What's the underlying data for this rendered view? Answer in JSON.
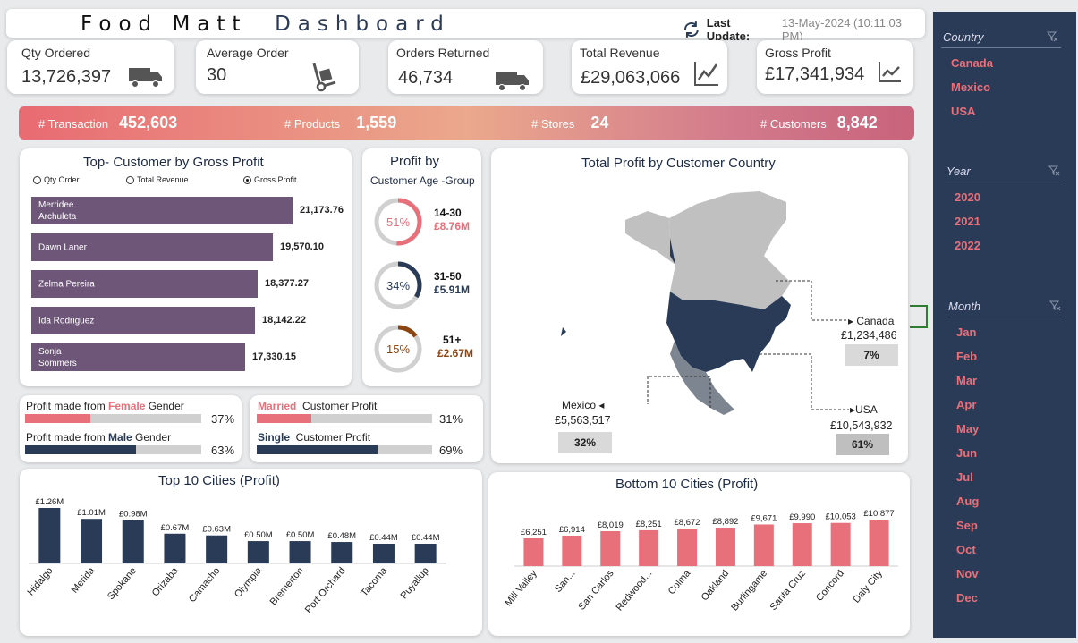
{
  "header": {
    "title_part1": "Food Matt",
    "title_part2": "Dashboard",
    "last_update_label": "Last Update:",
    "last_update_value": "13-May-2024 (10:11:03 PM)"
  },
  "kpis": [
    {
      "label": "Qty Ordered",
      "value": "13,726,397",
      "icon": "truck-icon"
    },
    {
      "label": "Average Order",
      "value": "30",
      "icon": "hand-truck-icon"
    },
    {
      "label": "Orders Returned",
      "value": "46,734",
      "icon": "truck-icon"
    },
    {
      "label": "Total Revenue",
      "value": "£29,063,066",
      "icon": "line-chart-icon"
    },
    {
      "label": "Gross Profit",
      "value": "£17,341,934",
      "icon": "line-chart-icon"
    }
  ],
  "banner": [
    {
      "label": "# Transaction",
      "value": "452,603"
    },
    {
      "label": "# Products",
      "value": "1,559"
    },
    {
      "label": "# Stores",
      "value": "24"
    },
    {
      "label": "# Customers",
      "value": "8,842"
    }
  ],
  "top_customers": {
    "title": "Top- Customer by  Gross Profit",
    "options": [
      "Qty Order",
      "Total Revenue",
      "Gross Profit"
    ],
    "selected_option": "Gross Profit",
    "bars": [
      {
        "name": "Merridee Archuleta",
        "value": "21,173.76",
        "num": 21173.76
      },
      {
        "name": "Dawn Laner",
        "value": "19,570.10",
        "num": 19570.1
      },
      {
        "name": "Zelma Pereira",
        "value": "18,377.27",
        "num": 18377.27
      },
      {
        "name": "Ida Rodriguez",
        "value": "18,142.22",
        "num": 18142.22
      },
      {
        "name": "Sonja Sommers",
        "value": "17,330.15",
        "num": 17330.15
      }
    ]
  },
  "age_group": {
    "title": "Profit by",
    "subtitle": "Customer Age -Group",
    "items": [
      {
        "pct": "51%",
        "fraction": 0.51,
        "group": "14-30",
        "amount": "£8.76M",
        "color": "#e8707a"
      },
      {
        "pct": "34%",
        "fraction": 0.34,
        "group": "31-50",
        "amount": "£5.91M",
        "color": "#293b57"
      },
      {
        "pct": "15%",
        "fraction": 0.15,
        "group": "51+",
        "amount": "£2.67M",
        "color": "#8b4513"
      }
    ]
  },
  "gender": {
    "female_pre": "Profit made from ",
    "female_word": "Female",
    "female_post": " Gender",
    "female_pct": "37%",
    "female_fraction": 0.37,
    "male_pre": "Profit made from ",
    "male_word": "Male",
    "male_post": " Gender",
    "male_pct": "63%",
    "male_fraction": 0.63
  },
  "marital": {
    "married_word": "Married",
    "married_post": "  Customer Profit",
    "married_pct": "31%",
    "married_fraction": 0.31,
    "single_word": "Single",
    "single_post": "  Customer Profit",
    "single_pct": "69%",
    "single_fraction": 0.69
  },
  "map": {
    "title": "Total Profit by Customer Country",
    "countries": [
      {
        "name": "Canada",
        "value": "£1,234,486",
        "pct": "7%"
      },
      {
        "name": "Mexico",
        "value": "£5,563,517",
        "pct": "32%"
      },
      {
        "name": "USA",
        "value": "£10,543,932",
        "pct": "61%"
      }
    ]
  },
  "chart_data": [
    {
      "type": "bar",
      "title": "Top 10  Cities (Profit)",
      "categories": [
        "Hidalgo",
        "Merida",
        "Spokane",
        "Orizaba",
        "Camacho",
        "Olympia",
        "Bremerton",
        "Port Orchard",
        "Tacoma",
        "Puyallup"
      ],
      "values": [
        1.26,
        1.01,
        0.98,
        0.67,
        0.63,
        0.5,
        0.5,
        0.48,
        0.44,
        0.44
      ],
      "labels": [
        "£1.26M",
        "£1.01M",
        "£0.98M",
        "£0.67M",
        "£0.63M",
        "£0.50M",
        "£0.50M",
        "£0.48M",
        "£0.44M",
        "£0.44M"
      ],
      "color": "#293b57"
    },
    {
      "type": "bar",
      "title": "Bottom 10 Cities (Profit)",
      "categories": [
        "Mill Valley",
        "San...",
        "San Carlos",
        "Redwood...",
        "Colma",
        "Oakland",
        "Burlingame",
        "Santa Cruz",
        "Concord",
        "Daly City"
      ],
      "values": [
        6251,
        6914,
        8019,
        8251,
        8672,
        8892,
        9671,
        9990,
        10053,
        10877
      ],
      "labels": [
        "£6,251",
        "£6,914",
        "£8,019",
        "£8,251",
        "£8,672",
        "£8,892",
        "£9,671",
        "£9,990",
        "£10,053",
        "£10,877"
      ],
      "color": "#e8707a"
    }
  ],
  "slicers": {
    "country": {
      "label": "Country",
      "items": [
        "Canada",
        "Mexico",
        "USA"
      ]
    },
    "year": {
      "label": "Year",
      "items": [
        "2020",
        "2021",
        "2022"
      ]
    },
    "month": {
      "label": "Month",
      "items": [
        "Jan",
        "Feb",
        "Mar",
        "Apr",
        "May",
        "Jun",
        "Jul",
        "Aug",
        "Sep",
        "Oct",
        "Nov",
        "Dec"
      ]
    }
  },
  "colors": {
    "navy": "#293b57",
    "accent": "#e8707a",
    "purple": "#6e5679"
  }
}
